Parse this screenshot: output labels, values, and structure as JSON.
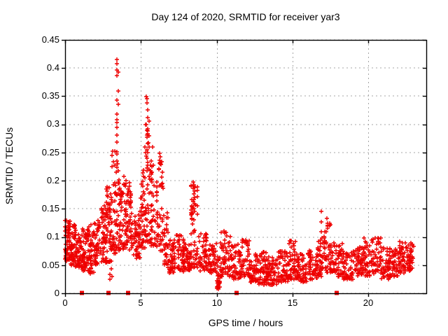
{
  "chart_data": {
    "type": "scatter",
    "title": "Day 124 of 2020, SRMTID for receiver yar3",
    "xlabel": "GPS time / hours",
    "ylabel": "SRMTID / TECUs",
    "xlim": [
      0,
      23.83
    ],
    "ylim": [
      0,
      0.45
    ],
    "grid": true,
    "legend": "none",
    "x_ticks": [
      0,
      5,
      10,
      15,
      20
    ],
    "x_tick_labels": [
      "0",
      "5",
      "10",
      "15",
      "20"
    ],
    "y_ticks": [
      0,
      0.05,
      0.1,
      0.15,
      0.2,
      0.25,
      0.3,
      0.35,
      0.4,
      0.45
    ],
    "y_tick_labels": [
      "0",
      "0.05",
      "0.1",
      "0.15",
      "0.2",
      "0.25",
      "0.3",
      "0.35",
      "0.4",
      "0.45"
    ],
    "series": [
      {
        "name": "srmtid-points",
        "marker": "plus",
        "color": "#ee0000",
        "bins_schema": [
          "x_start",
          "x_end",
          "y_min",
          "y_max",
          "count",
          "low_bias",
          "columns"
        ],
        "bins": [
          [
            0.0,
            0.35,
            0.055,
            0.135,
            60,
            1.2
          ],
          [
            0.35,
            0.7,
            0.05,
            0.125,
            55,
            1.3
          ],
          [
            0.7,
            1.1,
            0.045,
            0.105,
            50,
            1.3
          ],
          [
            1.1,
            1.5,
            0.04,
            0.115,
            50,
            1.3
          ],
          [
            1.5,
            1.9,
            0.035,
            0.125,
            50,
            1.3
          ],
          [
            1.9,
            2.3,
            0.05,
            0.135,
            48,
            1.3
          ],
          [
            2.3,
            2.7,
            0.055,
            0.155,
            48,
            1.4
          ],
          [
            2.7,
            3.05,
            0.055,
            0.19,
            55,
            1.5
          ],
          [
            2.9,
            3.1,
            0.02,
            0.045,
            4,
            1.0
          ],
          [
            3.05,
            3.35,
            0.07,
            0.26,
            40,
            1.8
          ],
          [
            3.35,
            3.55,
            0.08,
            0.4,
            30,
            2.0,
            2
          ],
          [
            3.55,
            4.0,
            0.075,
            0.21,
            55,
            1.5
          ],
          [
            4.0,
            4.45,
            0.075,
            0.2,
            60,
            1.4
          ],
          [
            4.45,
            4.95,
            0.06,
            0.14,
            50,
            1.3
          ],
          [
            4.95,
            5.25,
            0.08,
            0.22,
            40,
            1.6
          ],
          [
            5.25,
            5.6,
            0.09,
            0.33,
            45,
            1.8,
            3
          ],
          [
            5.6,
            6.0,
            0.085,
            0.26,
            42,
            1.7
          ],
          [
            6.0,
            6.5,
            0.075,
            0.24,
            48,
            1.7,
            3
          ],
          [
            6.5,
            6.8,
            0.05,
            0.145,
            35,
            1.4
          ],
          [
            6.8,
            7.3,
            0.035,
            0.095,
            48,
            1.3
          ],
          [
            7.3,
            7.85,
            0.038,
            0.105,
            50,
            1.3
          ],
          [
            7.85,
            8.25,
            0.04,
            0.09,
            42,
            1.3
          ],
          [
            8.25,
            8.8,
            0.045,
            0.2,
            58,
            1.6,
            3
          ],
          [
            8.8,
            9.4,
            0.04,
            0.108,
            52,
            1.4
          ],
          [
            9.4,
            10.0,
            0.035,
            0.09,
            48,
            1.3
          ],
          [
            10.0,
            10.25,
            0.008,
            0.07,
            30,
            1.2
          ],
          [
            10.25,
            10.95,
            0.03,
            0.112,
            55,
            1.5
          ],
          [
            10.95,
            11.55,
            0.025,
            0.088,
            48,
            1.3
          ],
          [
            11.55,
            12.15,
            0.028,
            0.096,
            50,
            1.4
          ],
          [
            12.15,
            12.75,
            0.02,
            0.07,
            52,
            1.3
          ],
          [
            12.75,
            13.35,
            0.015,
            0.075,
            55,
            1.4
          ],
          [
            13.35,
            14.0,
            0.015,
            0.065,
            58,
            1.3
          ],
          [
            14.0,
            14.7,
            0.02,
            0.075,
            58,
            1.3
          ],
          [
            14.7,
            15.25,
            0.025,
            0.095,
            50,
            1.4
          ],
          [
            15.25,
            15.95,
            0.02,
            0.07,
            58,
            1.3
          ],
          [
            15.95,
            16.65,
            0.025,
            0.078,
            56,
            1.3
          ],
          [
            16.65,
            17.1,
            0.03,
            0.1,
            40,
            1.4
          ],
          [
            17.1,
            17.6,
            0.035,
            0.135,
            45,
            1.6
          ],
          [
            17.6,
            18.3,
            0.03,
            0.092,
            52,
            1.4
          ],
          [
            18.3,
            19.0,
            0.025,
            0.075,
            52,
            1.3
          ],
          [
            19.0,
            19.6,
            0.03,
            0.082,
            46,
            1.3
          ],
          [
            19.6,
            20.2,
            0.03,
            0.098,
            46,
            1.4
          ],
          [
            20.2,
            20.85,
            0.035,
            0.102,
            48,
            1.4
          ],
          [
            20.85,
            21.45,
            0.025,
            0.082,
            46,
            1.3
          ],
          [
            21.45,
            22.0,
            0.03,
            0.078,
            46,
            1.3
          ],
          [
            22.0,
            22.55,
            0.035,
            0.092,
            50,
            1.3
          ],
          [
            22.55,
            23.0,
            0.04,
            0.09,
            42,
            1.2
          ]
        ],
        "peak_points": [
          [
            3.42,
            0.415
          ],
          [
            3.4,
            0.408
          ],
          [
            3.43,
            0.397
          ],
          [
            3.41,
            0.386
          ],
          [
            3.42,
            0.343
          ],
          [
            3.4,
            0.318
          ],
          [
            3.43,
            0.303
          ],
          [
            3.41,
            0.294
          ],
          [
            3.44,
            0.281
          ],
          [
            3.4,
            0.269
          ],
          [
            3.42,
            0.247
          ],
          [
            3.45,
            0.23
          ],
          [
            3.39,
            0.215
          ],
          [
            5.38,
            0.349
          ],
          [
            5.41,
            0.346
          ],
          [
            5.39,
            0.338
          ],
          [
            5.44,
            0.312
          ],
          [
            5.36,
            0.3
          ],
          [
            5.42,
            0.29
          ],
          [
            5.39,
            0.277
          ],
          [
            5.45,
            0.266
          ],
          [
            5.41,
            0.255
          ],
          [
            5.37,
            0.244
          ],
          [
            5.47,
            0.233
          ],
          [
            5.42,
            0.222
          ],
          [
            5.52,
            0.207
          ],
          [
            5.68,
            0.214
          ],
          [
            5.73,
            0.198
          ],
          [
            6.23,
            0.249
          ],
          [
            6.27,
            0.243
          ],
          [
            6.24,
            0.236
          ],
          [
            6.31,
            0.229
          ],
          [
            6.21,
            0.22
          ],
          [
            6.36,
            0.206
          ],
          [
            6.41,
            0.195
          ],
          [
            8.46,
            0.198
          ],
          [
            8.51,
            0.193
          ],
          [
            8.43,
            0.187
          ],
          [
            8.56,
            0.182
          ],
          [
            8.49,
            0.176
          ],
          [
            8.53,
            0.17
          ],
          [
            8.45,
            0.163
          ],
          [
            8.59,
            0.157
          ],
          [
            8.48,
            0.151
          ],
          [
            8.54,
            0.145
          ],
          [
            16.88,
            0.146
          ],
          [
            16.88,
            0.127
          ],
          [
            16.89,
            0.109
          ],
          [
            16.87,
            0.088
          ],
          [
            17.27,
            0.133
          ],
          [
            17.31,
            0.121
          ],
          [
            17.24,
            0.11
          ],
          [
            10.05,
            0.012
          ],
          [
            10.09,
            0.018
          ],
          [
            10.12,
            0.01
          ],
          [
            2.93,
            0.188
          ],
          [
            3.08,
            0.225
          ],
          [
            3.15,
            0.252
          ],
          [
            10.62,
            0.108
          ],
          [
            10.66,
            0.102
          ]
        ]
      },
      {
        "name": "axis-event-squares",
        "marker": "filled-square",
        "color": "#ee0000",
        "y_value": 0,
        "x_values": [
          1.1,
          2.85,
          4.15,
          11.3,
          17.9
        ]
      }
    ],
    "colors": {
      "marker": "#ee0000",
      "grid": "#a6a6a6",
      "border": "#000000",
      "background": "#ffffff"
    }
  }
}
